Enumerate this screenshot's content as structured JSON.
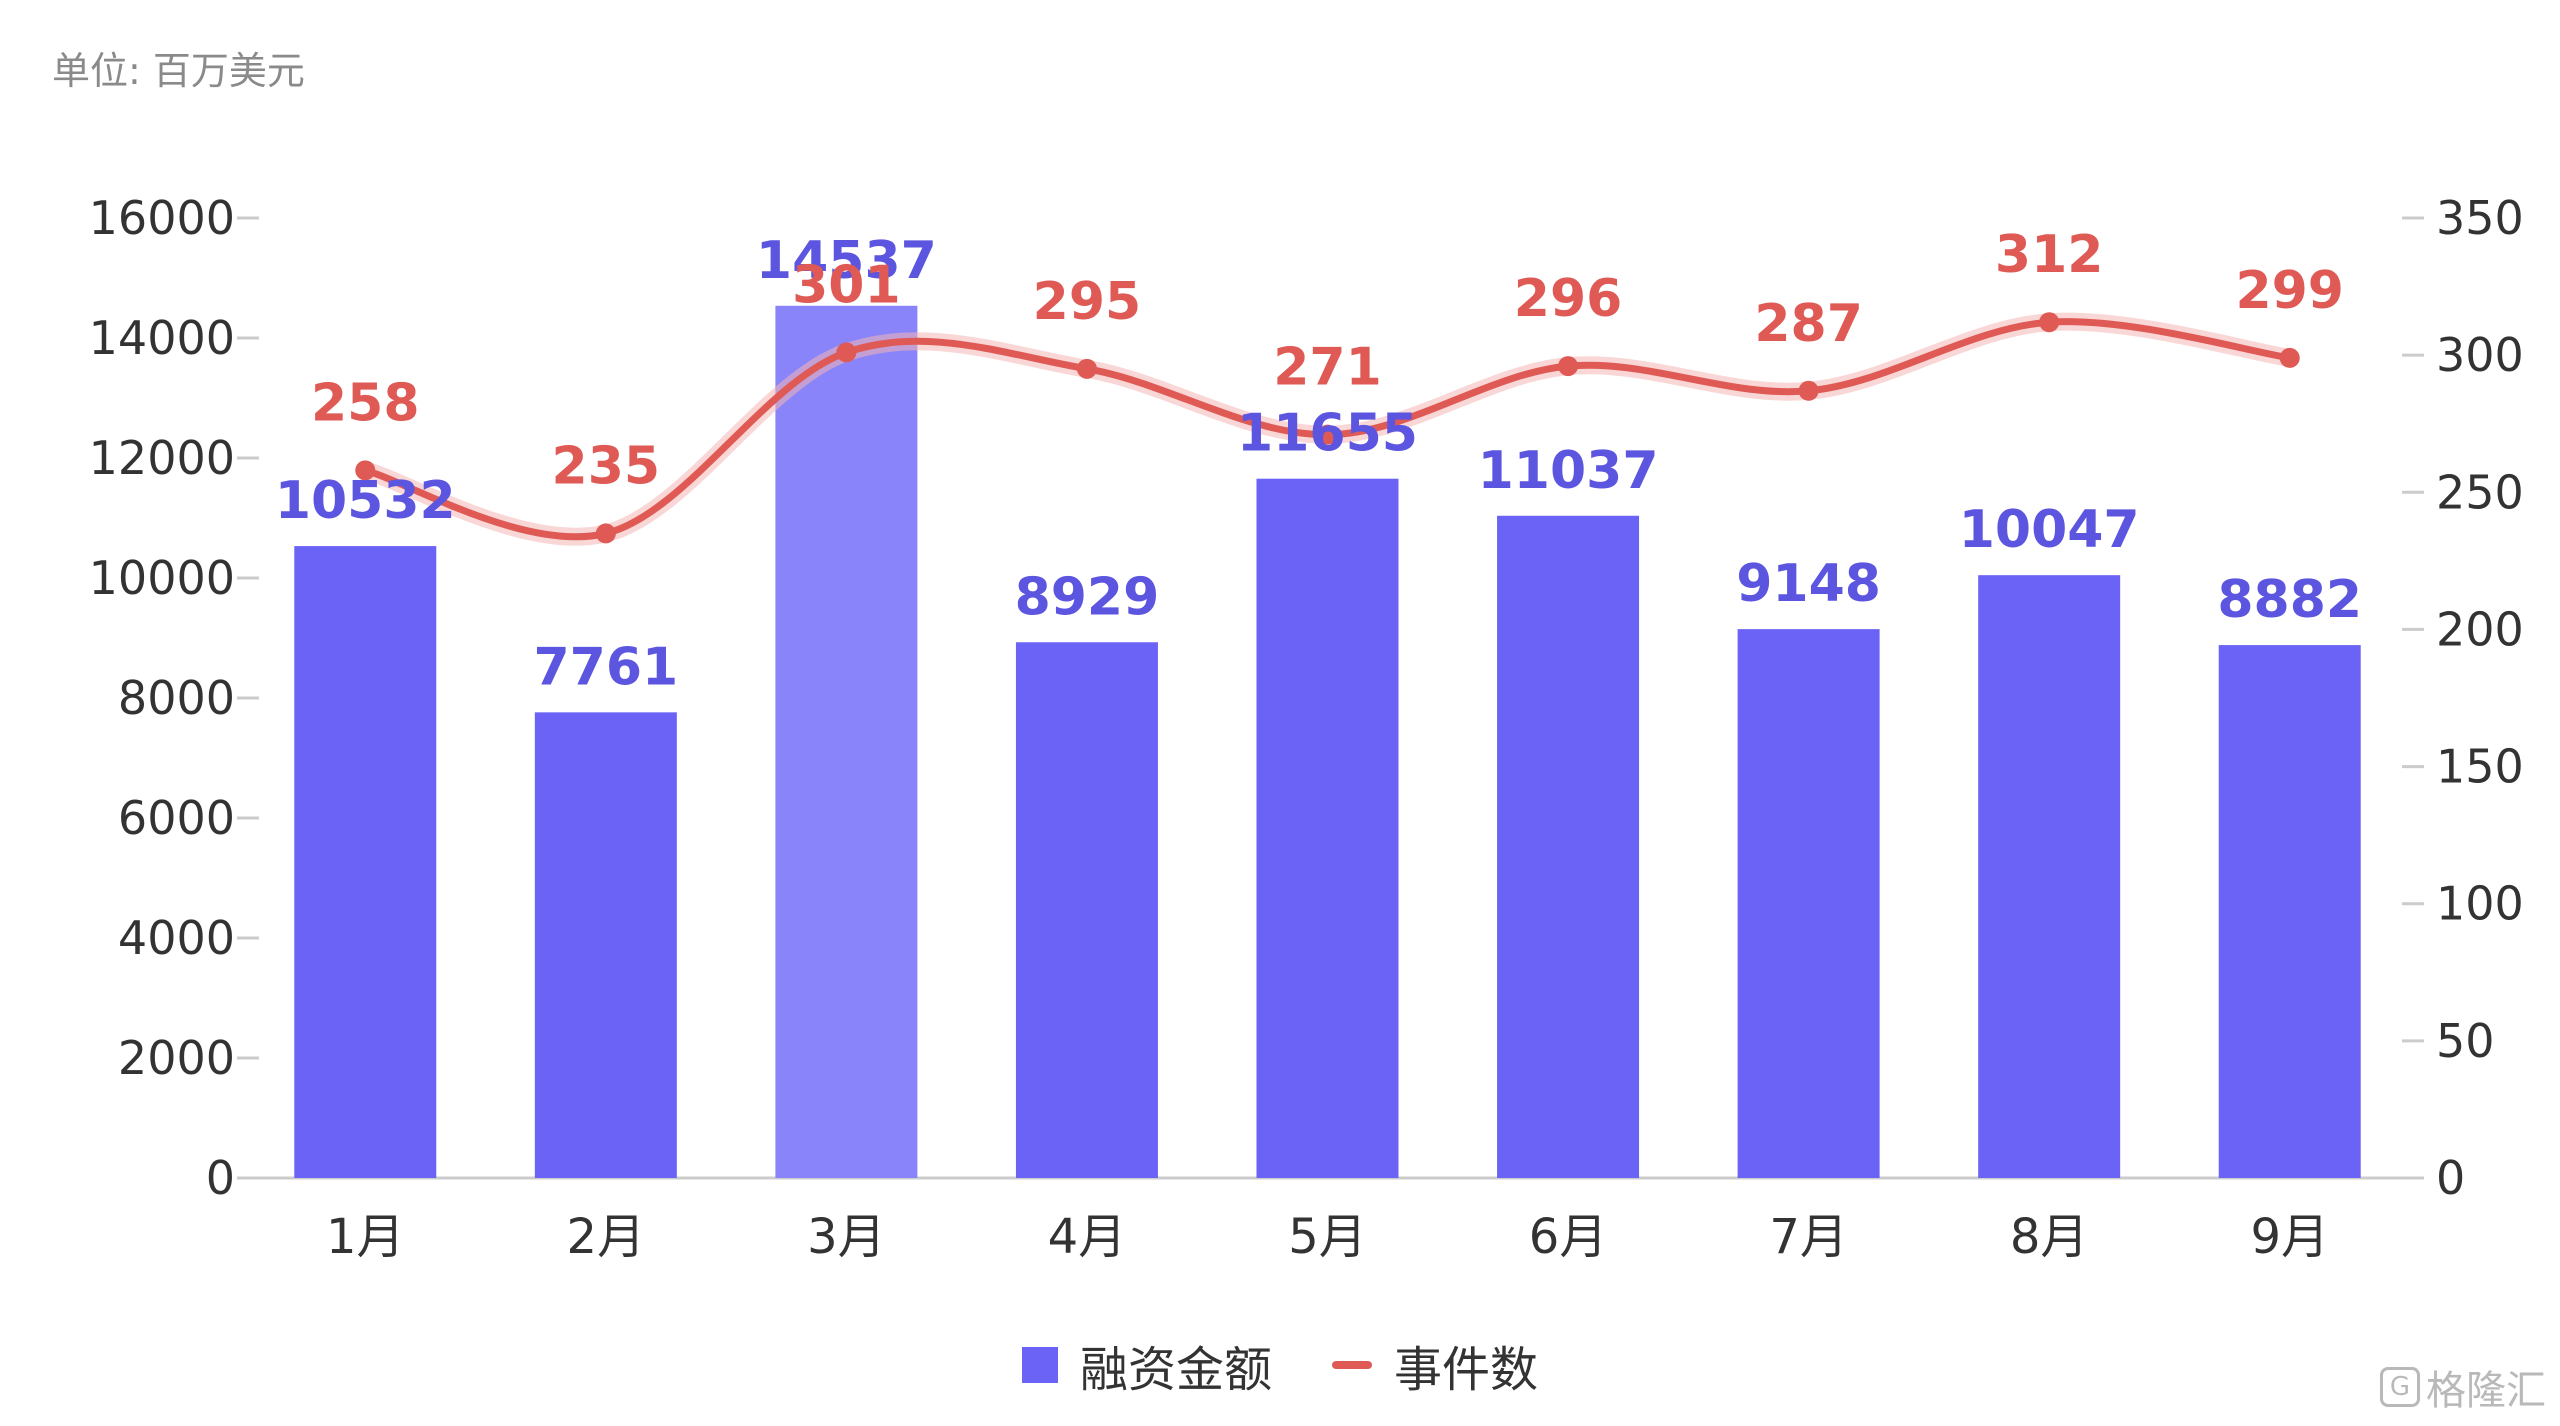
{
  "unit_label": "单位: 百万美元",
  "legend": {
    "bars": "融资金额",
    "line": "事件数"
  },
  "watermark": {
    "text": "格隆汇",
    "icon": "G"
  },
  "colors": {
    "bar": "#6a63f5",
    "bar_highlight": "#8a84fa",
    "line": "#e05a55",
    "axis": "#cccccc"
  },
  "chart_data": {
    "type": "bar+line",
    "categories": [
      "1月",
      "2月",
      "3月",
      "4月",
      "5月",
      "6月",
      "7月",
      "8月",
      "9月"
    ],
    "series": [
      {
        "name": "融资金额",
        "type": "bar",
        "axis": "left",
        "values": [
          10532,
          7761,
          14537,
          8929,
          11655,
          11037,
          9148,
          10047,
          8882
        ]
      },
      {
        "name": "事件数",
        "type": "line",
        "axis": "right",
        "values": [
          258,
          235,
          301,
          295,
          271,
          296,
          287,
          312,
          299
        ]
      }
    ],
    "highlight_index": 2,
    "y_left": {
      "range": [
        0,
        16000
      ],
      "ticks": [
        0,
        2000,
        4000,
        6000,
        8000,
        10000,
        12000,
        14000,
        16000
      ]
    },
    "y_right": {
      "range": [
        0,
        350
      ],
      "ticks": [
        0,
        50,
        100,
        150,
        200,
        250,
        300,
        350
      ]
    },
    "legend_position": "bottom-center",
    "grid": false
  }
}
